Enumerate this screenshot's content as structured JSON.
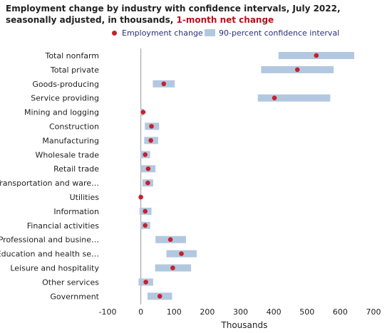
{
  "title": {
    "text": "Employment change by industry with confidence intervals, July 2022, seasonally adjusted, in thousands, ",
    "highlight": "1-month net change"
  },
  "legend": {
    "point_label": "Employment change",
    "interval_label": "90-percent confidence interval"
  },
  "colors": {
    "point": "#c8202b",
    "interval": "#b2c8e0",
    "zero_line": "#999999",
    "title_highlight": "#b3131b",
    "legend_text": "#2b2f7a"
  },
  "chart_data": {
    "type": "scatter",
    "orientation": "horizontal",
    "xlabel": "Thousands",
    "xlim": [
      -100,
      700
    ],
    "xticks": [
      -100,
      0,
      100,
      200,
      300,
      400,
      500,
      600,
      700
    ],
    "grid": false,
    "legend_position": "top-right",
    "series": [
      {
        "name": "Employment change",
        "marker": "point"
      },
      {
        "name": "90-percent confidence interval",
        "marker": "bar"
      }
    ],
    "categories": [
      "Total nonfarm",
      "Total private",
      "Goods-producing",
      "Service providing",
      "Mining and logging",
      "Construction",
      "Manufacturing",
      "Wholesale trade",
      "Retail trade",
      "Transportation and ware…",
      "Utilities",
      "Information",
      "Financial activities",
      "Professional and busine…",
      "Education and health se…",
      "Leisure and hospitality",
      "Other services",
      "Government"
    ],
    "values": [
      528,
      471,
      69,
      402,
      7,
      32,
      30,
      13,
      22,
      21,
      0,
      13,
      13,
      89,
      122,
      96,
      15,
      57
    ],
    "ci_low": [
      414,
      362,
      36,
      352,
      -1,
      12,
      10,
      -1,
      0,
      5,
      -4,
      -4,
      -1,
      44,
      77,
      43,
      -7,
      20
    ],
    "ci_high": [
      642,
      580,
      102,
      570,
      8,
      55,
      52,
      28,
      44,
      37,
      1,
      32,
      28,
      136,
      168,
      151,
      37,
      94
    ]
  }
}
